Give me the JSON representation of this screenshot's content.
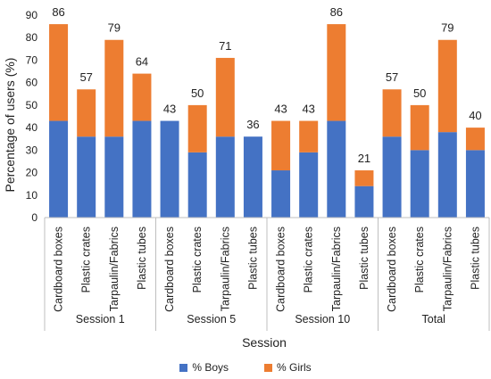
{
  "chart_data": {
    "type": "bar",
    "stacked": true,
    "ylabel": "Percentage of users (%)",
    "xlabel": "Session",
    "ylim": [
      0,
      90
    ],
    "yticks": [
      0,
      10,
      20,
      30,
      40,
      50,
      60,
      70,
      80,
      90
    ],
    "groups": [
      {
        "name": "Session 1",
        "categories": [
          "Cardboard boxes",
          "Plastic crates",
          "Tarpaulin/Fabrics",
          "Plastic tubes"
        ]
      },
      {
        "name": "Session 5",
        "categories": [
          "Cardboard boxes",
          "Plastic crates",
          "Tarpaulin/Fabrics",
          "Plastic tubes"
        ]
      },
      {
        "name": "Session 10",
        "categories": [
          "Cardboard boxes",
          "Plastic crates",
          "Tarpaulin/Fabrics",
          "Plastic tubes"
        ]
      },
      {
        "name": "Total",
        "categories": [
          "Cardboard boxes",
          "Plastic crates",
          "Tarpaulin/Fabrics",
          "Plastic tubes"
        ]
      }
    ],
    "series": [
      {
        "name": "% Boys",
        "color": "#4472C4",
        "values": [
          43,
          36,
          36,
          43,
          43,
          29,
          36,
          36,
          21,
          29,
          43,
          14,
          36,
          30,
          38,
          30
        ]
      },
      {
        "name": "% Girls",
        "color": "#ED7D31",
        "values": [
          43,
          21,
          43,
          21,
          0,
          21,
          35,
          0,
          22,
          14,
          43,
          7,
          21,
          20,
          41,
          10
        ]
      }
    ],
    "totals": [
      "86",
      "57",
      "79",
      "64",
      "43",
      "50",
      "71",
      "36",
      "43",
      "43",
      "86",
      "21",
      "57",
      "50",
      "79",
      "40"
    ],
    "legend_position": "bottom",
    "grid": false
  }
}
